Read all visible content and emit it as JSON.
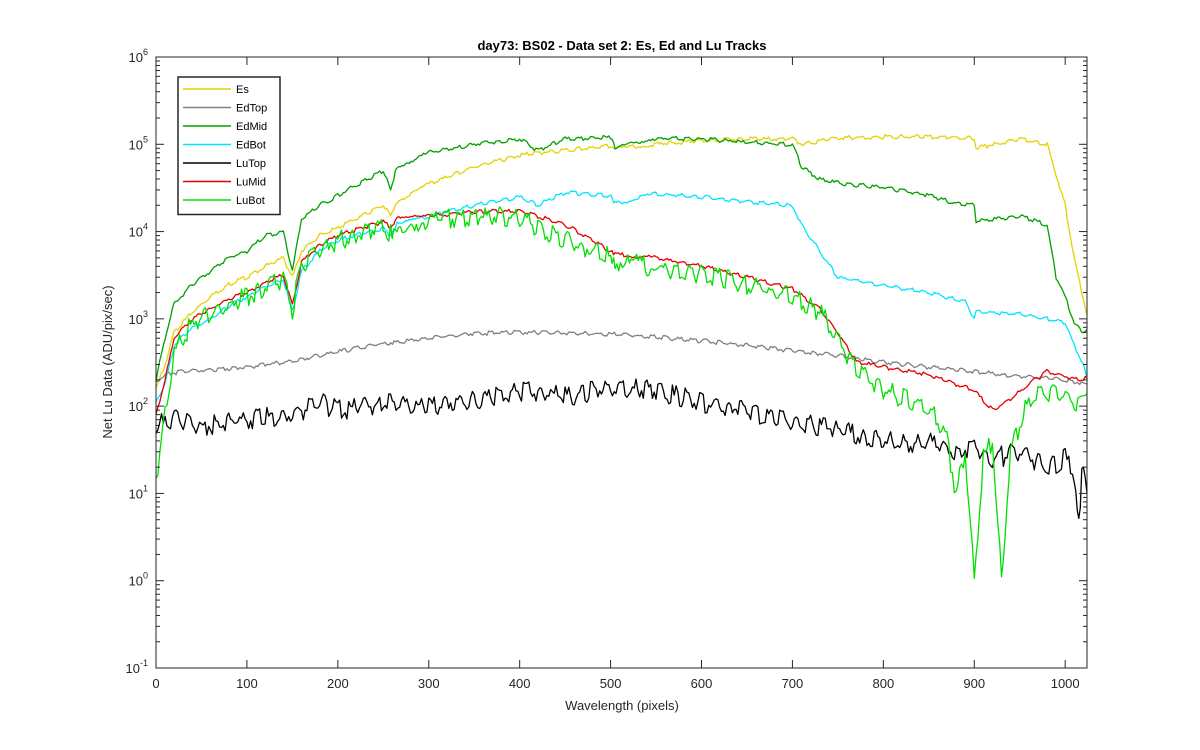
{
  "chart_data": {
    "type": "line",
    "title": "day73: BS02 - Data set 2: Es, Ed and Lu Tracks",
    "xlabel": "Wavelength (pixels)",
    "ylabel": "Net Lu Data (ADU/pix/sec)",
    "xlim": [
      0,
      1024
    ],
    "ylim": [
      0.1,
      1000000
    ],
    "yscale": "log",
    "grid": false,
    "legend_location": "top-left",
    "xticks": [
      {
        "value": 0,
        "label": "0"
      },
      {
        "value": 100,
        "label": "100"
      },
      {
        "value": 200,
        "label": "200"
      },
      {
        "value": 300,
        "label": "300"
      },
      {
        "value": 400,
        "label": "400"
      },
      {
        "value": 500,
        "label": "500"
      },
      {
        "value": 600,
        "label": "600"
      },
      {
        "value": 700,
        "label": "700"
      },
      {
        "value": 800,
        "label": "800"
      },
      {
        "value": 900,
        "label": "900"
      },
      {
        "value": 1000,
        "label": "1000"
      }
    ],
    "yticks": [
      {
        "value": 0.1,
        "base": "10",
        "exp": "-1"
      },
      {
        "value": 1,
        "base": "10",
        "exp": "0"
      },
      {
        "value": 10,
        "base": "10",
        "exp": "1"
      },
      {
        "value": 100,
        "base": "10",
        "exp": "2"
      },
      {
        "value": 1000,
        "base": "10",
        "exp": "3"
      },
      {
        "value": 10000,
        "base": "10",
        "exp": "4"
      },
      {
        "value": 100000,
        "base": "10",
        "exp": "5"
      },
      {
        "value": 1000000,
        "base": "10",
        "exp": "6"
      }
    ],
    "series": [
      {
        "name": "Es",
        "color": "#e6d200",
        "x": [
          0,
          10,
          20,
          40,
          60,
          80,
          100,
          120,
          140,
          150,
          160,
          180,
          200,
          220,
          250,
          258,
          265,
          300,
          350,
          400,
          420,
          450,
          500,
          505,
          550,
          600,
          650,
          700,
          710,
          750,
          800,
          850,
          900,
          902,
          950,
          980,
          1000,
          1010,
          1024
        ],
        "y": [
          160,
          300,
          700,
          1200,
          1800,
          2500,
          3000,
          4000,
          5000,
          3000,
          6000,
          9000,
          11000,
          14000,
          20000,
          15000,
          22000,
          35000,
          55000,
          75000,
          80000,
          85000,
          95000,
          88000,
          100000,
          110000,
          115000,
          115000,
          100000,
          118000,
          122000,
          122000,
          118000,
          90000,
          115000,
          100000,
          20000,
          5000,
          1100
        ]
      },
      {
        "name": "EdTop",
        "color": "#808080",
        "x": [
          0,
          10,
          30,
          60,
          100,
          150,
          200,
          250,
          300,
          350,
          400,
          450,
          500,
          550,
          600,
          650,
          700,
          750,
          800,
          850,
          900,
          950,
          1000,
          1024
        ],
        "y": [
          190,
          230,
          250,
          260,
          280,
          330,
          420,
          520,
          600,
          680,
          700,
          690,
          670,
          620,
          560,
          500,
          430,
          380,
          320,
          280,
          250,
          220,
          200,
          180
        ]
      },
      {
        "name": "EdMid",
        "color": "#00a000",
        "x": [
          0,
          10,
          20,
          40,
          60,
          80,
          100,
          120,
          140,
          150,
          160,
          180,
          200,
          250,
          258,
          265,
          300,
          350,
          400,
          420,
          450,
          500,
          505,
          550,
          600,
          650,
          700,
          710,
          730,
          750,
          800,
          850,
          880,
          900,
          902,
          950,
          980,
          990,
          1000,
          1010,
          1020,
          1024
        ],
        "y": [
          200,
          600,
          1500,
          2500,
          3500,
          5000,
          6000,
          9000,
          10000,
          3500,
          14000,
          20000,
          26000,
          50000,
          30000,
          55000,
          80000,
          100000,
          115000,
          85000,
          115000,
          120000,
          90000,
          118000,
          115000,
          105000,
          100000,
          55000,
          40000,
          36000,
          32000,
          26000,
          21000,
          20000,
          13000,
          15000,
          12000,
          3000,
          1800,
          900,
          700,
          750
        ]
      },
      {
        "name": "EdBot",
        "color": "#00e5ff",
        "x": [
          0,
          10,
          20,
          40,
          60,
          80,
          100,
          120,
          140,
          150,
          160,
          180,
          200,
          250,
          258,
          265,
          300,
          350,
          400,
          420,
          450,
          500,
          505,
          550,
          600,
          650,
          700,
          710,
          730,
          750,
          800,
          850,
          890,
          900,
          902,
          950,
          980,
          1000,
          1010,
          1020,
          1024
        ],
        "y": [
          110,
          180,
          500,
          800,
          1000,
          1400,
          1800,
          2300,
          2800,
          1200,
          3500,
          6000,
          8000,
          11000,
          9000,
          12000,
          15000,
          20000,
          25000,
          20000,
          28000,
          26000,
          21000,
          27000,
          25000,
          22000,
          20000,
          12000,
          6000,
          3000,
          2400,
          2000,
          1600,
          1000,
          1200,
          1150,
          1000,
          900,
          500,
          300,
          200
        ]
      },
      {
        "name": "LuTop",
        "color": "#000000",
        "x": [
          0,
          20,
          50,
          100,
          150,
          180,
          200,
          230,
          260,
          300,
          350,
          400,
          430,
          460,
          500,
          520,
          550,
          600,
          650,
          700,
          730,
          750,
          780,
          800,
          830,
          850,
          880,
          900,
          920,
          950,
          980,
          1000,
          1010,
          1015,
          1020,
          1024
        ],
        "y": [
          60,
          70,
          60,
          70,
          80,
          110,
          90,
          100,
          110,
          100,
          120,
          150,
          140,
          130,
          170,
          160,
          150,
          110,
          90,
          65,
          60,
          55,
          45,
          40,
          35,
          40,
          30,
          35,
          25,
          30,
          20,
          25,
          15,
          5,
          25,
          10
        ]
      },
      {
        "name": "LuMid",
        "color": "#e60000",
        "x": [
          0,
          10,
          20,
          40,
          60,
          80,
          100,
          120,
          140,
          150,
          160,
          180,
          200,
          250,
          258,
          265,
          300,
          350,
          400,
          420,
          450,
          500,
          505,
          550,
          600,
          650,
          700,
          730,
          750,
          770,
          800,
          850,
          900,
          920,
          940,
          960,
          980,
          1000,
          1010,
          1024
        ],
        "y": [
          80,
          200,
          600,
          1000,
          1300,
          1700,
          2000,
          2600,
          3200,
          1400,
          4500,
          7000,
          9000,
          13000,
          11000,
          14000,
          15000,
          17000,
          17000,
          15000,
          12000,
          6000,
          5500,
          5000,
          4000,
          3000,
          2200,
          1300,
          700,
          320,
          280,
          230,
          150,
          90,
          120,
          180,
          250,
          220,
          200,
          210
        ]
      },
      {
        "name": "LuBot",
        "color": "#00e000",
        "x": [
          0,
          10,
          20,
          40,
          60,
          80,
          100,
          120,
          140,
          150,
          160,
          180,
          200,
          250,
          258,
          265,
          300,
          350,
          400,
          420,
          450,
          500,
          505,
          550,
          600,
          650,
          700,
          730,
          750,
          770,
          800,
          850,
          870,
          880,
          890,
          900,
          910,
          920,
          930,
          940,
          950,
          960,
          980,
          1000,
          1010,
          1024
        ],
        "y": [
          15,
          80,
          400,
          900,
          1100,
          1500,
          1800,
          2300,
          2900,
          1300,
          4000,
          6500,
          8000,
          11000,
          9500,
          12000,
          14000,
          15000,
          14500,
          11000,
          8000,
          5000,
          4500,
          4000,
          3300,
          2500,
          1800,
          1200,
          600,
          250,
          150,
          100,
          40,
          10,
          30,
          1,
          25,
          40,
          1,
          30,
          60,
          120,
          140,
          130,
          110,
          140
        ]
      }
    ]
  }
}
